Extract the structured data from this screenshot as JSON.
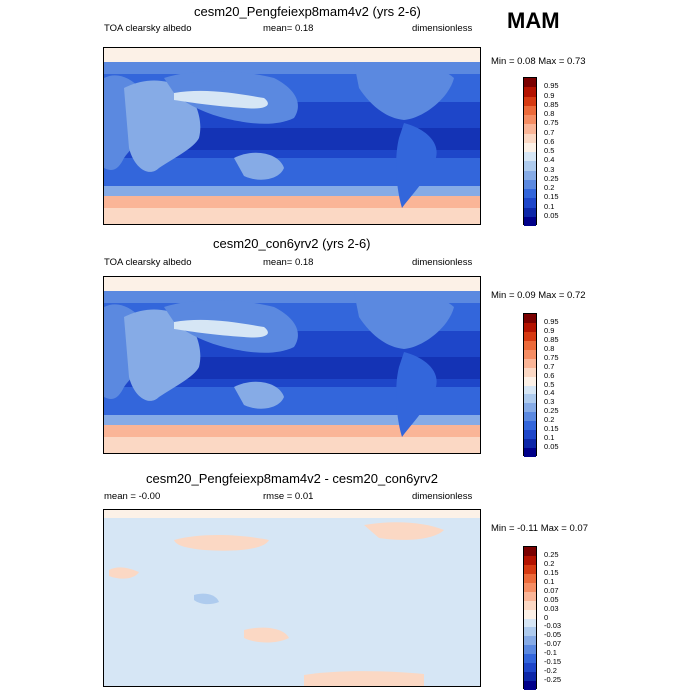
{
  "season": "MAM",
  "panels": [
    {
      "title": "cesm20_Pengfeiexp8mam4v2 (yrs 2-6)",
      "left_label": "TOA clearsky albedo",
      "center_label": "mean=   0.18",
      "right_label": "dimensionless",
      "minmax": "Min =   0.08 Max =   0.73",
      "colorbar": {
        "levels": [
          "0.95",
          "0.9",
          "0.85",
          "0.8",
          "0.75",
          "0.7",
          "0.6",
          "0.5",
          "0.4",
          "0.3",
          "0.25",
          "0.2",
          "0.15",
          "0.1",
          "0.05"
        ],
        "colors": [
          "#7a0000",
          "#b31200",
          "#d63a12",
          "#ec6a3a",
          "#f58d63",
          "#fab597",
          "#fbd8c4",
          "#fcf1e7",
          "#d6e6f5",
          "#aecbee",
          "#86abe6",
          "#5b89e0",
          "#3366db",
          "#1e46c9",
          "#0d27a8",
          "#00008a"
        ]
      },
      "chart_data": {
        "type": "heatmap",
        "title": "cesm20_Pengfeiexp8mam4v2 (yrs 2-6)",
        "variable": "TOA clearsky albedo",
        "units": "dimensionless",
        "mean": 0.18,
        "min": 0.08,
        "max": 0.73
      }
    },
    {
      "title": "cesm20_con6yrv2 (yrs 2-6)",
      "left_label": "TOA clearsky albedo",
      "center_label": "mean=   0.18",
      "right_label": "dimensionless",
      "minmax": "Min =   0.09 Max =   0.72",
      "colorbar": {
        "levels": [
          "0.95",
          "0.9",
          "0.85",
          "0.8",
          "0.75",
          "0.7",
          "0.6",
          "0.5",
          "0.4",
          "0.3",
          "0.25",
          "0.2",
          "0.15",
          "0.1",
          "0.05"
        ],
        "colors": [
          "#7a0000",
          "#b31200",
          "#d63a12",
          "#ec6a3a",
          "#f58d63",
          "#fab597",
          "#fbd8c4",
          "#fcf1e7",
          "#d6e6f5",
          "#aecbee",
          "#86abe6",
          "#5b89e0",
          "#3366db",
          "#1e46c9",
          "#0d27a8",
          "#00008a"
        ]
      },
      "chart_data": {
        "type": "heatmap",
        "title": "cesm20_con6yrv2 (yrs 2-6)",
        "variable": "TOA clearsky albedo",
        "units": "dimensionless",
        "mean": 0.18,
        "min": 0.09,
        "max": 0.72
      }
    },
    {
      "title": "cesm20_Pengfeiexp8mam4v2 - cesm20_con6yrv2",
      "left_label": "mean =  -0.00",
      "center_label": "rmse =   0.01",
      "right_label": "dimensionless",
      "minmax": "Min =  -0.11 Max =   0.07",
      "colorbar": {
        "levels": [
          "0.25",
          "0.2",
          "0.15",
          "0.1",
          "0.07",
          "0.05",
          "0.03",
          "0",
          "-0.03",
          "-0.05",
          "-0.07",
          "-0.1",
          "-0.15",
          "-0.2",
          "-0.25"
        ],
        "colors": [
          "#7a0000",
          "#b31200",
          "#d63a12",
          "#ec6a3a",
          "#f58d63",
          "#fab597",
          "#fbd8c4",
          "#fcf1e7",
          "#d6e6f5",
          "#aecbee",
          "#86abe6",
          "#5b89e0",
          "#3366db",
          "#1e46c9",
          "#0d27a8",
          "#00008a"
        ]
      },
      "chart_data": {
        "type": "heatmap",
        "title": "cesm20_Pengfeiexp8mam4v2 - cesm20_con6yrv2",
        "units": "dimensionless",
        "mean": -0.0,
        "rmse": 0.01,
        "min": -0.11,
        "max": 0.07
      }
    }
  ],
  "chart_data": [
    {
      "type": "heatmap",
      "title": "cesm20_Pengfeiexp8mam4v2 (yrs 2-6)",
      "variable": "TOA clearsky albedo",
      "units": "dimensionless",
      "mean": 0.18,
      "min": 0.08,
      "max": 0.73,
      "legend_levels": [
        0.95,
        0.9,
        0.85,
        0.8,
        0.75,
        0.7,
        0.6,
        0.5,
        0.4,
        0.3,
        0.25,
        0.2,
        0.15,
        0.1,
        0.05
      ]
    },
    {
      "type": "heatmap",
      "title": "cesm20_con6yrv2 (yrs 2-6)",
      "variable": "TOA clearsky albedo",
      "units": "dimensionless",
      "mean": 0.18,
      "min": 0.09,
      "max": 0.72,
      "legend_levels": [
        0.95,
        0.9,
        0.85,
        0.8,
        0.75,
        0.7,
        0.6,
        0.5,
        0.4,
        0.3,
        0.25,
        0.2,
        0.15,
        0.1,
        0.05
      ]
    },
    {
      "type": "heatmap",
      "title": "cesm20_Pengfeiexp8mam4v2 - cesm20_con6yrv2",
      "units": "dimensionless",
      "mean": -0.0,
      "rmse": 0.01,
      "min": -0.11,
      "max": 0.07,
      "legend_levels": [
        0.25,
        0.2,
        0.15,
        0.1,
        0.07,
        0.05,
        0.03,
        0,
        -0.03,
        -0.05,
        -0.07,
        -0.1,
        -0.15,
        -0.2,
        -0.25
      ]
    }
  ]
}
